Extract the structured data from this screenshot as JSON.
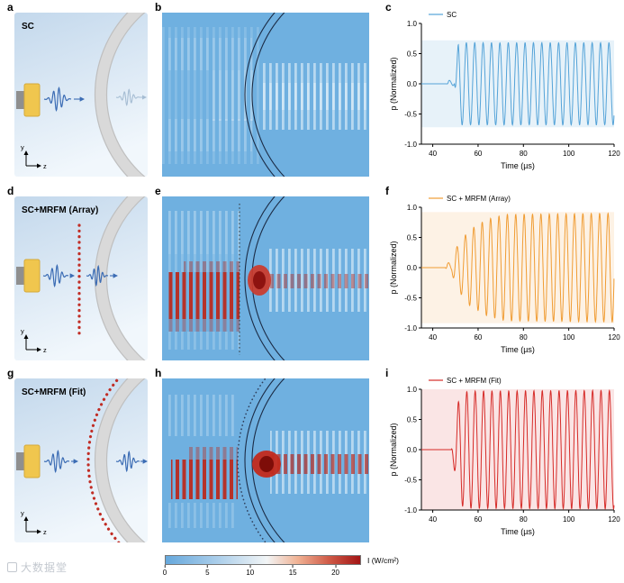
{
  "panel_letters": {
    "a": "a",
    "b": "b",
    "c": "c",
    "d": "d",
    "e": "e",
    "f": "f",
    "g": "g",
    "h": "h",
    "i": "i"
  },
  "axis": {
    "y": "y",
    "z": "z"
  },
  "schematics": [
    {
      "id": "a",
      "title": "SC"
    },
    {
      "id": "d",
      "title": "SC+MRFM (Array)"
    },
    {
      "id": "g",
      "title": "SC+MRFM (Fit)"
    }
  ],
  "colorbar": {
    "label": "I (W/cm²)",
    "ticks": [
      0,
      5,
      10,
      15,
      20
    ],
    "vmax": 23,
    "colors": [
      "#66a8dc",
      "#a9cdea",
      "#f2f5f6",
      "#f0b193",
      "#cf5a47",
      "#a31515"
    ]
  },
  "watermark": {
    "text": "大数据堂"
  },
  "chart_data": [
    {
      "panel": "c",
      "type": "line",
      "legend": "SC",
      "color": "#54a3d8",
      "fill_alpha": 0.14,
      "xlabel": "Time (µs)",
      "ylabel": "p (Normalized)",
      "xlim": [
        35,
        120
      ],
      "ylim": [
        -1,
        1
      ],
      "xticks": [
        40,
        60,
        80,
        100,
        120
      ],
      "yticks": [
        -1,
        -0.5,
        0,
        0.5,
        1
      ],
      "period_us": 3.7,
      "phase_us": 50.2,
      "onset_us": 50,
      "steady_amplitude": 0.68,
      "band": 0.72,
      "envelope": [
        [
          35,
          0
        ],
        [
          46.3,
          0
        ],
        [
          47.0,
          0.06
        ],
        [
          48.8,
          0.04
        ],
        [
          49.6,
          0
        ],
        [
          51.3,
          0.68
        ],
        [
          120,
          0.68
        ]
      ]
    },
    {
      "panel": "f",
      "type": "line",
      "legend": "SC + MRFM (Array)",
      "color": "#f09c33",
      "fill_alpha": 0.13,
      "xlabel": "Time (µs)",
      "ylabel": "p (Normalized)",
      "xlim": [
        35,
        120
      ],
      "ylim": [
        -1,
        1
      ],
      "xticks": [
        40,
        60,
        80,
        100,
        120
      ],
      "yticks": [
        -1,
        -0.5,
        0,
        0.5,
        1
      ],
      "period_us": 3.7,
      "phase_us": 49.8,
      "onset_us": 48,
      "steady_amplitude": 0.9,
      "band": 0.92,
      "envelope": [
        [
          35,
          0
        ],
        [
          45.6,
          0
        ],
        [
          46.4,
          0.09
        ],
        [
          48.4,
          0.06
        ],
        [
          49.8,
          0.3
        ],
        [
          56,
          0.62
        ],
        [
          64,
          0.8
        ],
        [
          72,
          0.88
        ],
        [
          120,
          0.9
        ]
      ]
    },
    {
      "panel": "i",
      "type": "line",
      "legend": "SC + MRFM (Fit)",
      "color": "#d62b28",
      "fill_alpha": 0.12,
      "xlabel": "Time (µs)",
      "ylabel": "p (Normalized)",
      "xlim": [
        35,
        120
      ],
      "ylim": [
        -1,
        1
      ],
      "xticks": [
        40,
        60,
        80,
        100,
        120
      ],
      "yticks": [
        -1,
        -0.5,
        0,
        0.5,
        1
      ],
      "period_us": 3.7,
      "phase_us": 50.4,
      "onset_us": 49,
      "steady_amplitude": 0.97,
      "band": 1.0,
      "envelope": [
        [
          35,
          0
        ],
        [
          48.2,
          0
        ],
        [
          49.8,
          0.4
        ],
        [
          51.2,
          0.78
        ],
        [
          52.8,
          0.93
        ],
        [
          56,
          0.97
        ],
        [
          120,
          0.98
        ]
      ]
    }
  ]
}
